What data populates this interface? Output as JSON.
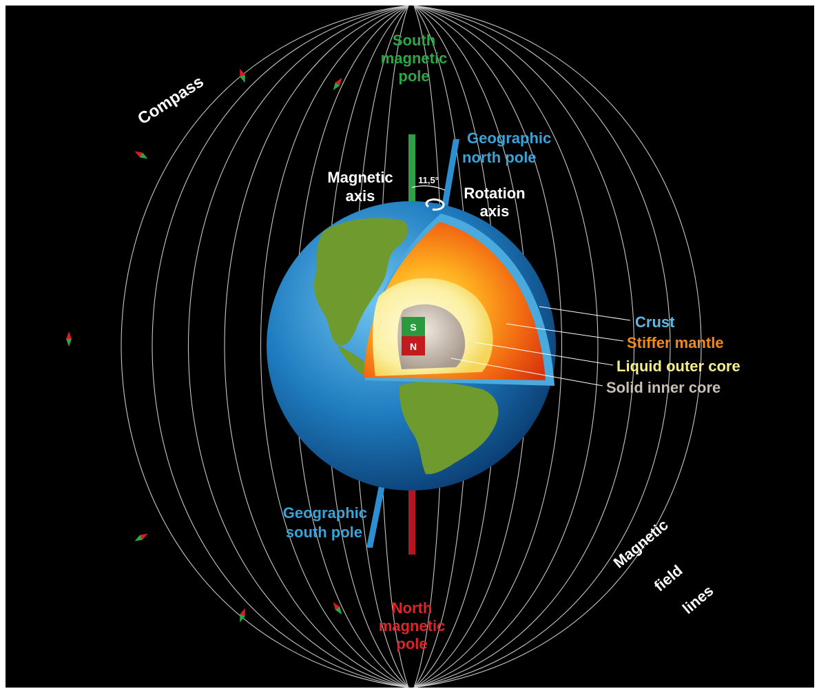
{
  "diagram": {
    "labels": {
      "south_magnetic_pole": [
        "South",
        "magnetic",
        "pole"
      ],
      "north_magnetic_pole": [
        "North",
        "magnetic",
        "pole"
      ],
      "geographic_north_pole": [
        "Geographic",
        "north pole"
      ],
      "geographic_south_pole": [
        "Geographic",
        "south pole"
      ],
      "magnetic_axis": [
        "Magnetic",
        "axis"
      ],
      "rotation_axis": [
        "Rotation",
        "axis"
      ],
      "angle": "11,5°",
      "compass": "Compass",
      "field_lines": [
        "Magnetic",
        "field",
        "lines"
      ],
      "crust": "Crust",
      "stiffer_mantle": "Stiffer mantle",
      "liquid_outer_core": "Liquid outer core",
      "solid_inner_core": "Solid inner core",
      "magnet_s": "S",
      "magnet_n": "N"
    },
    "colors": {
      "background": "#000000",
      "green_label": "#2aa845",
      "red_label": "#d8262c",
      "blue_label": "#3aa3d8",
      "white": "#ffffff",
      "crust": "#5fb8e6",
      "mantle": "#f08a1c",
      "outer_core": "#f7ee8c",
      "inner_core": "#c9bfb4"
    }
  }
}
